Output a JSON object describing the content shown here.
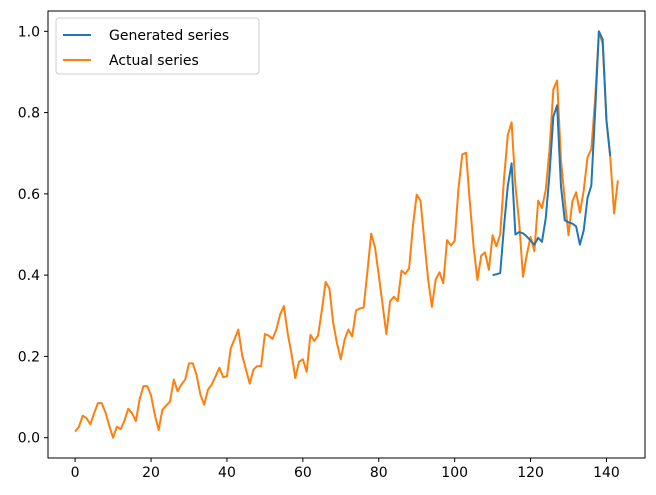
{
  "chart_data": {
    "type": "line",
    "title": "",
    "xlabel": "",
    "ylabel": "",
    "xlim": [
      -7.15,
      150.15
    ],
    "ylim": [
      -0.05,
      1.05
    ],
    "xticks": [
      0,
      20,
      40,
      60,
      80,
      100,
      120,
      140
    ],
    "xtick_labels": [
      "0",
      "20",
      "40",
      "60",
      "80",
      "100",
      "120",
      "140"
    ],
    "yticks": [
      0.0,
      0.2,
      0.4,
      0.6,
      0.8,
      1.0
    ],
    "ytick_labels": [
      "0.0",
      "0.2",
      "0.4",
      "0.6",
      "0.8",
      "1.0"
    ],
    "grid": false,
    "legend_position": "top-left",
    "series": [
      {
        "name": "Generated series",
        "color": "#1f77b4",
        "x_start": 110,
        "values": [
          0.4,
          0.402,
          0.405,
          0.52,
          0.62,
          0.675,
          0.5,
          0.506,
          0.503,
          0.495,
          0.485,
          0.475,
          0.492,
          0.482,
          0.54,
          0.65,
          0.79,
          0.818,
          0.62,
          0.535,
          0.53,
          0.527,
          0.52,
          0.475,
          0.51,
          0.59,
          0.62,
          0.8,
          1.0,
          0.98,
          0.78,
          0.693
        ]
      },
      {
        "name": "Actual series",
        "color": "#ff7f0e",
        "x_start": 0,
        "values": [
          0.015,
          0.027,
          0.054,
          0.048,
          0.033,
          0.06,
          0.085,
          0.085,
          0.062,
          0.029,
          0.0,
          0.027,
          0.021,
          0.042,
          0.071,
          0.06,
          0.041,
          0.095,
          0.127,
          0.127,
          0.104,
          0.056,
          0.019,
          0.069,
          0.079,
          0.089,
          0.143,
          0.114,
          0.131,
          0.143,
          0.183,
          0.183,
          0.154,
          0.106,
          0.081,
          0.118,
          0.131,
          0.151,
          0.172,
          0.149,
          0.151,
          0.22,
          0.243,
          0.266,
          0.203,
          0.168,
          0.133,
          0.168,
          0.176,
          0.176,
          0.255,
          0.251,
          0.243,
          0.266,
          0.303,
          0.324,
          0.257,
          0.207,
          0.147,
          0.187,
          0.193,
          0.162,
          0.253,
          0.238,
          0.251,
          0.313,
          0.383,
          0.367,
          0.282,
          0.232,
          0.193,
          0.241,
          0.266,
          0.249,
          0.313,
          0.318,
          0.32,
          0.407,
          0.502,
          0.469,
          0.4,
          0.328,
          0.255,
          0.336,
          0.347,
          0.336,
          0.411,
          0.403,
          0.417,
          0.521,
          0.598,
          0.583,
          0.485,
          0.39,
          0.322,
          0.389,
          0.407,
          0.38,
          0.486,
          0.473,
          0.484,
          0.613,
          0.697,
          0.701,
          0.579,
          0.469,
          0.388,
          0.448,
          0.456,
          0.413,
          0.498,
          0.471,
          0.5,
          0.637,
          0.745,
          0.776,
          0.621,
          0.529,
          0.396,
          0.45,
          0.494,
          0.459,
          0.583,
          0.565,
          0.61,
          0.71,
          0.857,
          0.879,
          0.685,
          0.585,
          0.498,
          0.581,
          0.604,
          0.554,
          0.608,
          0.69,
          0.71,
          0.832,
          1.0,
          0.969,
          0.78,
          0.69,
          0.552,
          0.633
        ]
      }
    ]
  }
}
